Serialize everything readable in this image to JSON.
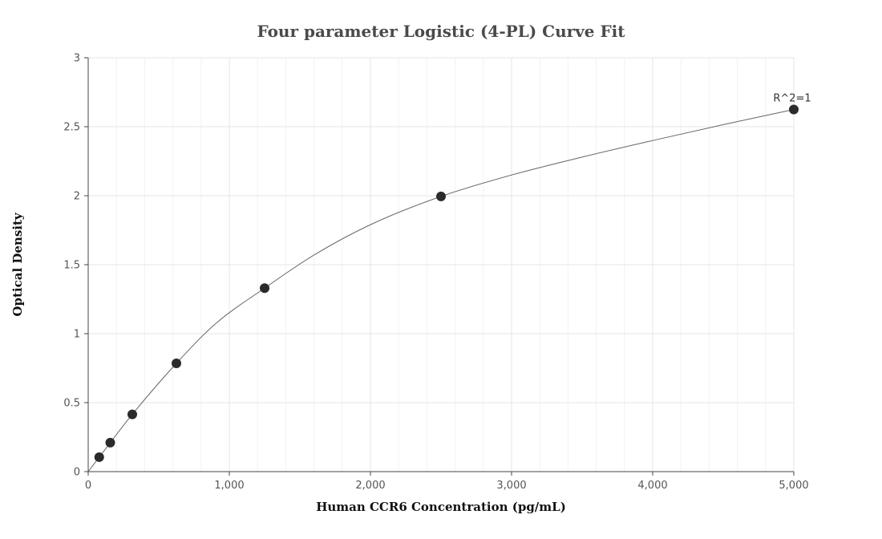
{
  "chart_data": {
    "type": "scatter",
    "title": "Four parameter Logistic (4-PL) Curve Fit",
    "xlabel": "Human CCR6 Concentration (pg/mL)",
    "ylabel": "Optical Density",
    "xlim": [
      0,
      5000
    ],
    "ylim": [
      0,
      3
    ],
    "x_ticks": [
      0,
      1000,
      2000,
      3000,
      4000,
      5000
    ],
    "x_tick_labels": [
      "0",
      "1,000",
      "2,000",
      "3,000",
      "4,000",
      "5,000"
    ],
    "y_ticks": [
      0,
      0.5,
      1,
      1.5,
      2,
      2.5,
      3
    ],
    "y_tick_labels": [
      "0",
      "0.5",
      "1",
      "1.5",
      "2",
      "2.5",
      "3"
    ],
    "grid": true,
    "series": [
      {
        "x": [
          78.125,
          156.25,
          312.5,
          625,
          1250,
          2500,
          5000
        ],
        "y": [
          0.105,
          0.21,
          0.415,
          0.785,
          1.33,
          1.995,
          2.625
        ]
      }
    ],
    "fit_curve": {
      "x": [
        0,
        78.125,
        156.25,
        312.5,
        625,
        900,
        1250,
        1600,
        2000,
        2500,
        3000,
        3500,
        4000,
        4500,
        5000
      ],
      "y": [
        0.0,
        0.105,
        0.21,
        0.415,
        0.785,
        1.07,
        1.33,
        1.57,
        1.79,
        1.995,
        2.15,
        2.28,
        2.4,
        2.515,
        2.625
      ]
    },
    "annotations": [
      {
        "text": "R^2=1",
        "x": 5000,
        "y": 2.625
      }
    ],
    "colors": {
      "points": "#2b2b2b",
      "curve": "#666666",
      "grid": "#e6e6e6",
      "axis": "#444444"
    }
  }
}
